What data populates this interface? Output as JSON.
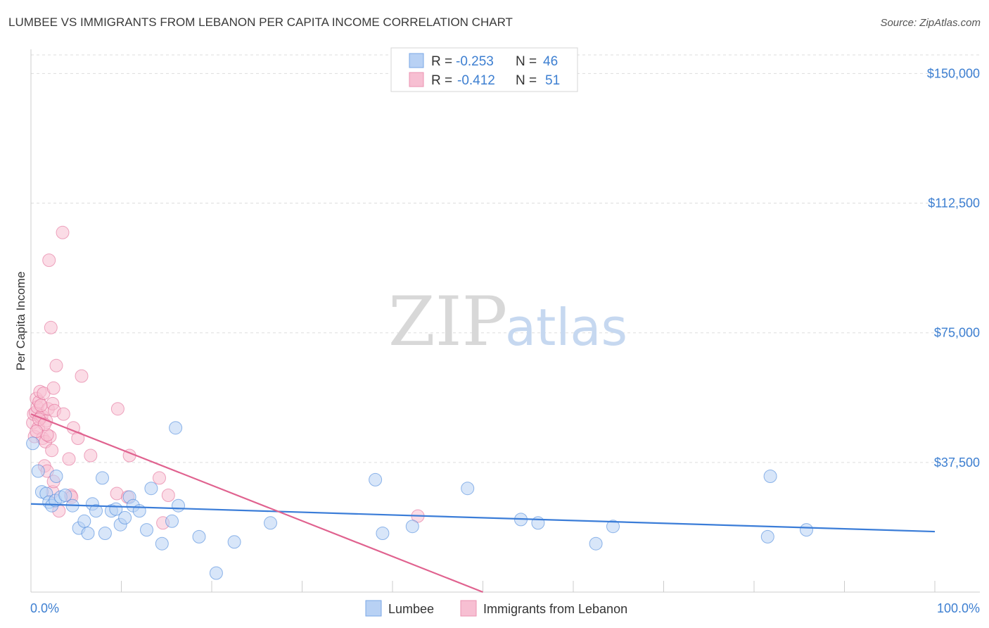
{
  "title": "LUMBEE VS IMMIGRANTS FROM LEBANON PER CAPITA INCOME CORRELATION CHART",
  "source": "Source: ZipAtlas.com",
  "watermark": {
    "zip": "ZIP",
    "atlas": "atlas"
  },
  "colors": {
    "blue": "#3b7dd8",
    "blue_fill": "#b8d1f4",
    "pink": "#e0628f",
    "pink_fill": "#f7bfd2",
    "tick": "#3d7fd1",
    "grid": "#dddddd"
  },
  "legend": {
    "r_label": "R =",
    "n_label": "N =",
    "rows": [
      {
        "r": "-0.253",
        "n": "46"
      },
      {
        "r": "-0.412",
        "n": "51"
      }
    ]
  },
  "chart_data": {
    "type": "scatter",
    "title": "LUMBEE VS IMMIGRANTS FROM LEBANON PER CAPITA INCOME CORRELATION CHART",
    "xlabel": "",
    "ylabel": "Per Capita Income",
    "xlim": [
      0,
      100
    ],
    "ylim": [
      0,
      157000
    ],
    "x_tick_labels": [
      "0.0%",
      "100.0%"
    ],
    "y_ticks": [
      {
        "value": 150000,
        "label": "$150,000"
      },
      {
        "value": 112500,
        "label": "$112,500"
      },
      {
        "value": 75000,
        "label": "$75,000"
      },
      {
        "value": 37500,
        "label": "$37,500"
      }
    ],
    "series": [
      {
        "name": "Lumbee",
        "color": "#3b7dd8",
        "trend": {
          "x": [
            0,
            100
          ],
          "y": [
            25500,
            17500
          ]
        },
        "points": [
          {
            "x": 0.2,
            "y": 43000
          },
          {
            "x": 0.8,
            "y": 35000
          },
          {
            "x": 1.2,
            "y": 29000
          },
          {
            "x": 1.7,
            "y": 28500
          },
          {
            "x": 2.0,
            "y": 26000
          },
          {
            "x": 2.3,
            "y": 25000
          },
          {
            "x": 2.7,
            "y": 26500
          },
          {
            "x": 3.3,
            "y": 27500
          },
          {
            "x": 3.8,
            "y": 28000
          },
          {
            "x": 4.6,
            "y": 25000
          },
          {
            "x": 2.8,
            "y": 33500
          },
          {
            "x": 5.3,
            "y": 18500
          },
          {
            "x": 5.9,
            "y": 20500
          },
          {
            "x": 6.3,
            "y": 17000
          },
          {
            "x": 6.8,
            "y": 25500
          },
          {
            "x": 7.2,
            "y": 23500
          },
          {
            "x": 7.9,
            "y": 33000
          },
          {
            "x": 8.2,
            "y": 17000
          },
          {
            "x": 8.9,
            "y": 23500
          },
          {
            "x": 9.4,
            "y": 24000
          },
          {
            "x": 9.9,
            "y": 19500
          },
          {
            "x": 10.4,
            "y": 21500
          },
          {
            "x": 10.9,
            "y": 27500
          },
          {
            "x": 11.3,
            "y": 25000
          },
          {
            "x": 12.0,
            "y": 23500
          },
          {
            "x": 12.8,
            "y": 18000
          },
          {
            "x": 13.3,
            "y": 30000
          },
          {
            "x": 14.5,
            "y": 14000
          },
          {
            "x": 15.6,
            "y": 20500
          },
          {
            "x": 16.3,
            "y": 25000
          },
          {
            "x": 16.0,
            "y": 47500
          },
          {
            "x": 18.6,
            "y": 16000
          },
          {
            "x": 20.5,
            "y": 5500
          },
          {
            "x": 22.5,
            "y": 14500
          },
          {
            "x": 26.5,
            "y": 20000
          },
          {
            "x": 38.1,
            "y": 32500
          },
          {
            "x": 38.9,
            "y": 17000
          },
          {
            "x": 42.2,
            "y": 19000
          },
          {
            "x": 48.3,
            "y": 30000
          },
          {
            "x": 54.2,
            "y": 21000
          },
          {
            "x": 56.1,
            "y": 20000
          },
          {
            "x": 62.5,
            "y": 14000
          },
          {
            "x": 64.4,
            "y": 19000
          },
          {
            "x": 81.5,
            "y": 16000
          },
          {
            "x": 81.8,
            "y": 33500
          },
          {
            "x": 85.8,
            "y": 18000
          }
        ]
      },
      {
        "name": "Immigrants from Lebanon",
        "color": "#e0628f",
        "trend": {
          "x": [
            0,
            50
          ],
          "y": [
            51500,
            0
          ]
        },
        "points": [
          {
            "x": 0.2,
            "y": 49000
          },
          {
            "x": 0.3,
            "y": 51500
          },
          {
            "x": 0.4,
            "y": 45000
          },
          {
            "x": 0.5,
            "y": 52000
          },
          {
            "x": 0.6,
            "y": 56000
          },
          {
            "x": 0.7,
            "y": 53500
          },
          {
            "x": 0.8,
            "y": 47500
          },
          {
            "x": 0.9,
            "y": 55000
          },
          {
            "x": 1.0,
            "y": 58000
          },
          {
            "x": 1.1,
            "y": 50500
          },
          {
            "x": 1.2,
            "y": 51000
          },
          {
            "x": 1.3,
            "y": 44500
          },
          {
            "x": 1.4,
            "y": 57500
          },
          {
            "x": 1.5,
            "y": 36500
          },
          {
            "x": 1.6,
            "y": 43500
          },
          {
            "x": 1.7,
            "y": 49500
          },
          {
            "x": 1.8,
            "y": 35000
          },
          {
            "x": 1.9,
            "y": 53000
          },
          {
            "x": 2.0,
            "y": 96000
          },
          {
            "x": 2.1,
            "y": 45000
          },
          {
            "x": 2.2,
            "y": 76500
          },
          {
            "x": 2.3,
            "y": 41000
          },
          {
            "x": 2.4,
            "y": 54500
          },
          {
            "x": 2.5,
            "y": 59000
          },
          {
            "x": 2.6,
            "y": 52500
          },
          {
            "x": 2.4,
            "y": 29000
          },
          {
            "x": 2.5,
            "y": 32000
          },
          {
            "x": 2.8,
            "y": 65500
          },
          {
            "x": 3.6,
            "y": 51500
          },
          {
            "x": 3.1,
            "y": 23500
          },
          {
            "x": 1.1,
            "y": 54000
          },
          {
            "x": 1.8,
            "y": 45500
          },
          {
            "x": 4.2,
            "y": 38500
          },
          {
            "x": 3.5,
            "y": 104000
          },
          {
            "x": 4.4,
            "y": 28000
          },
          {
            "x": 4.5,
            "y": 27500
          },
          {
            "x": 4.7,
            "y": 47500
          },
          {
            "x": 5.2,
            "y": 44500
          },
          {
            "x": 5.6,
            "y": 62500
          },
          {
            "x": 6.6,
            "y": 39500
          },
          {
            "x": 9.6,
            "y": 53000
          },
          {
            "x": 9.5,
            "y": 28500
          },
          {
            "x": 10.7,
            "y": 27500
          },
          {
            "x": 10.9,
            "y": 39500
          },
          {
            "x": 14.2,
            "y": 33000
          },
          {
            "x": 14.6,
            "y": 20000
          },
          {
            "x": 15.2,
            "y": 28000
          },
          {
            "x": 42.8,
            "y": 22000
          },
          {
            "x": 0.9,
            "y": 50000
          },
          {
            "x": 1.5,
            "y": 48500
          },
          {
            "x": 0.6,
            "y": 46500
          }
        ]
      }
    ]
  }
}
